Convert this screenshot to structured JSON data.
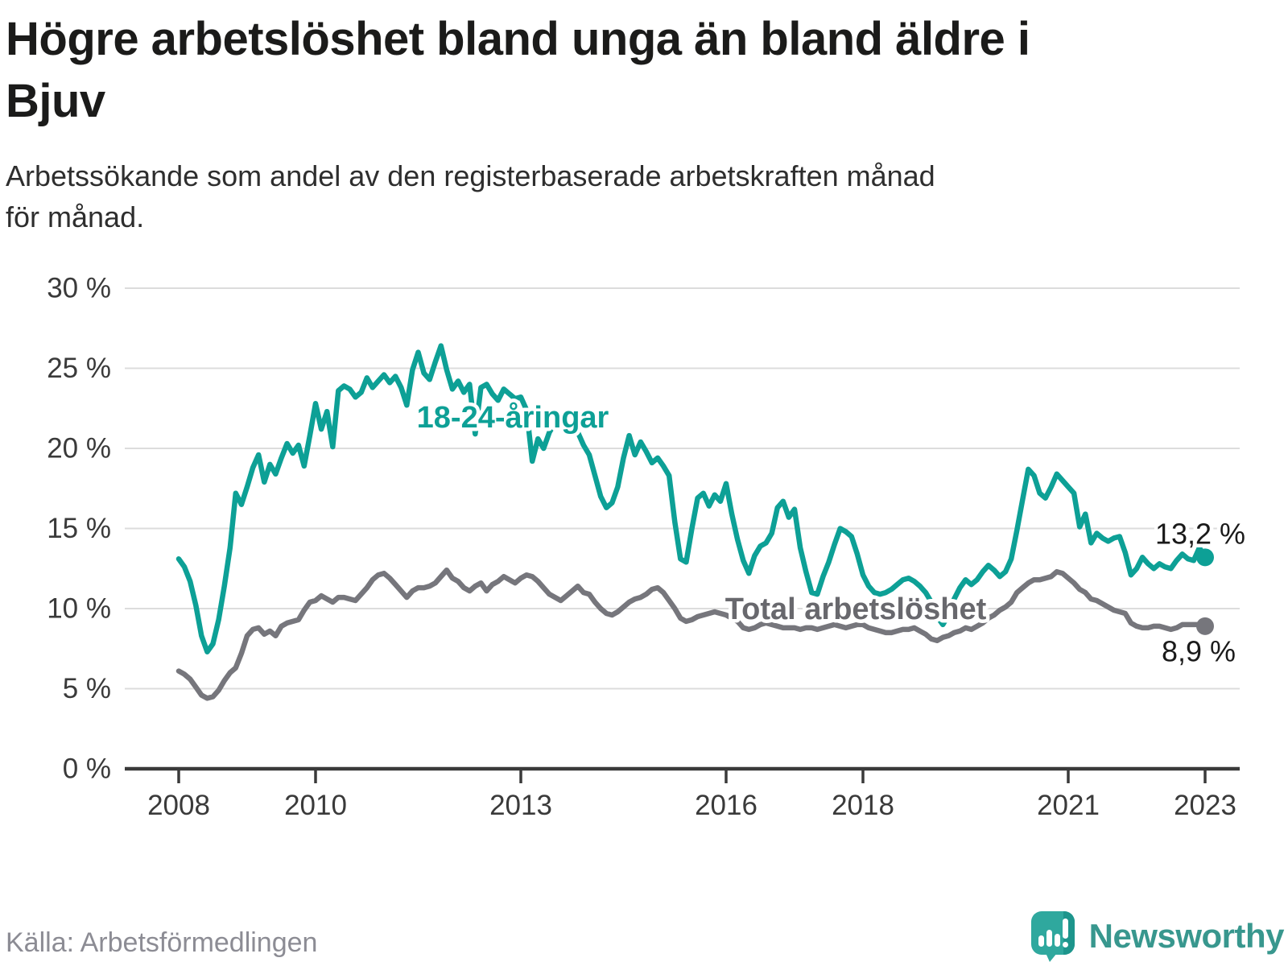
{
  "header": {
    "title_line1": "Högre arbetslöshet bland unga än bland äldre i",
    "title_line2": "Bjuv",
    "subtitle_line1": "Arbetssökande som andel av den registerbaserade arbetskraften månad",
    "subtitle_line2": "för månad."
  },
  "footer": {
    "source": "Källa: Arbetsförmedlingen",
    "brand": "Newsworthy"
  },
  "colors": {
    "youth_line": "#0da096",
    "total_line": "#76767c",
    "total_label": "#68686d",
    "axis_text": "#3a3a3a",
    "grid_line": "#dcdcdc",
    "axis_line": "#3a3a3a",
    "value_label": "#1a1a1a",
    "brand_teal": "#2fa89e",
    "brand_teal_dark": "#1d958c"
  },
  "chart_data": {
    "type": "line",
    "title": "Högre arbetslöshet bland unga än bland äldre i Bjuv",
    "subtitle": "Arbetssökande som andel av den registerbaserade arbetskraften månad för månad.",
    "x_unit": "month",
    "x_start": "2008-01",
    "x_end": "2023-01",
    "ylim": [
      0,
      30
    ],
    "grid": true,
    "y_ticks": [
      0,
      5,
      10,
      15,
      20,
      25,
      30
    ],
    "y_tick_labels": [
      "0 %",
      "5 %",
      "10 %",
      "15 %",
      "20 %",
      "25 %",
      "30 %"
    ],
    "x_tick_years": [
      2008,
      2010,
      2013,
      2016,
      2018,
      2021,
      2023
    ],
    "x_tick_labels": [
      "2008",
      "2010",
      "2013",
      "2016",
      "2018",
      "2021",
      "2023"
    ],
    "series": [
      {
        "name": "Total arbetslöshet",
        "color": "#76767c",
        "end_label": "8,9 %",
        "end_value": 8.9,
        "values": [
          6.1,
          5.9,
          5.6,
          5.1,
          4.6,
          4.4,
          4.5,
          4.9,
          5.5,
          6.0,
          6.3,
          7.2,
          8.3,
          8.7,
          8.8,
          8.4,
          8.6,
          8.3,
          8.9,
          9.1,
          9.2,
          9.3,
          9.9,
          10.4,
          10.5,
          10.8,
          10.6,
          10.4,
          10.7,
          10.7,
          10.6,
          10.5,
          10.9,
          11.3,
          11.8,
          12.1,
          12.2,
          11.9,
          11.5,
          11.1,
          10.7,
          11.1,
          11.3,
          11.3,
          11.4,
          11.6,
          12.0,
          12.4,
          11.9,
          11.7,
          11.3,
          11.1,
          11.4,
          11.6,
          11.1,
          11.5,
          11.7,
          12.0,
          11.8,
          11.6,
          11.9,
          12.1,
          12.0,
          11.7,
          11.3,
          10.9,
          10.7,
          10.5,
          10.8,
          11.1,
          11.4,
          11.0,
          10.9,
          10.4,
          10.0,
          9.7,
          9.6,
          9.8,
          10.1,
          10.4,
          10.6,
          10.7,
          10.9,
          11.2,
          11.3,
          11.0,
          10.5,
          10.0,
          9.4,
          9.2,
          9.3,
          9.5,
          9.6,
          9.7,
          9.8,
          9.7,
          9.6,
          9.4,
          9.2,
          8.8,
          8.7,
          8.8,
          9.0,
          9.1,
          9.0,
          8.9,
          8.8,
          8.8,
          8.8,
          8.7,
          8.8,
          8.8,
          8.7,
          8.8,
          8.9,
          9.0,
          8.9,
          8.8,
          8.9,
          9.0,
          9.0,
          8.8,
          8.7,
          8.6,
          8.5,
          8.5,
          8.6,
          8.7,
          8.7,
          8.8,
          8.6,
          8.4,
          8.1,
          8.0,
          8.2,
          8.3,
          8.5,
          8.6,
          8.8,
          8.7,
          8.9,
          9.1,
          9.4,
          9.6,
          9.9,
          10.1,
          10.4,
          11.0,
          11.3,
          11.6,
          11.8,
          11.8,
          11.9,
          12.0,
          12.3,
          12.2,
          11.9,
          11.6,
          11.2,
          11.0,
          10.6,
          10.5,
          10.3,
          10.1,
          9.9,
          9.8,
          9.7,
          9.1,
          8.9,
          8.8,
          8.8,
          8.9,
          8.9,
          8.8,
          8.7,
          8.8,
          9.0,
          9.0,
          9.0,
          9.0,
          8.9
        ]
      },
      {
        "name": "18-24-åringar",
        "color": "#0da096",
        "end_label": "13,2 %",
        "end_value": 13.2,
        "values": [
          13.1,
          12.6,
          11.7,
          10.2,
          8.3,
          7.3,
          7.8,
          9.3,
          11.4,
          13.8,
          17.2,
          16.5,
          17.6,
          18.8,
          19.6,
          17.9,
          19.0,
          18.4,
          19.4,
          20.3,
          19.7,
          20.2,
          18.9,
          20.8,
          22.8,
          21.2,
          22.3,
          20.1,
          23.6,
          23.9,
          23.7,
          23.2,
          23.5,
          24.4,
          23.8,
          24.2,
          24.6,
          24.1,
          24.5,
          23.8,
          22.7,
          24.9,
          26.0,
          24.7,
          24.3,
          25.4,
          26.4,
          24.9,
          23.7,
          24.2,
          23.5,
          24.0,
          20.9,
          23.8,
          24.0,
          23.4,
          23.0,
          23.7,
          23.4,
          23.1,
          23.2,
          22.4,
          19.2,
          20.6,
          20.0,
          21.0,
          21.6,
          21.8,
          21.4,
          21.2,
          21.0,
          20.2,
          19.6,
          18.3,
          17.0,
          16.3,
          16.6,
          17.6,
          19.4,
          20.8,
          19.6,
          20.4,
          19.8,
          19.1,
          19.4,
          18.9,
          18.3,
          15.4,
          13.1,
          12.9,
          15.0,
          16.9,
          17.2,
          16.4,
          17.1,
          16.7,
          17.8,
          15.9,
          14.3,
          13.0,
          12.2,
          13.3,
          13.9,
          14.1,
          14.7,
          16.3,
          16.7,
          15.7,
          16.2,
          13.8,
          12.3,
          11.0,
          10.9,
          12.0,
          12.9,
          14.0,
          15.0,
          14.8,
          14.5,
          13.4,
          12.1,
          11.4,
          11.0,
          10.9,
          11.0,
          11.2,
          11.5,
          11.8,
          11.9,
          11.7,
          11.4,
          11.0,
          10.4,
          9.5,
          9.0,
          9.6,
          10.6,
          11.3,
          11.8,
          11.5,
          11.8,
          12.3,
          12.7,
          12.4,
          12.0,
          12.3,
          13.1,
          14.9,
          16.8,
          18.7,
          18.3,
          17.2,
          16.9,
          17.6,
          18.4,
          18.0,
          17.6,
          17.2,
          15.1,
          15.9,
          14.1,
          14.7,
          14.4,
          14.2,
          14.4,
          14.5,
          13.5,
          12.1,
          12.5,
          13.2,
          12.8,
          12.5,
          12.8,
          12.6,
          12.5,
          13.0,
          13.4,
          13.1,
          13.0,
          13.8,
          13.2
        ]
      }
    ],
    "legend_position": "inline-labels"
  }
}
